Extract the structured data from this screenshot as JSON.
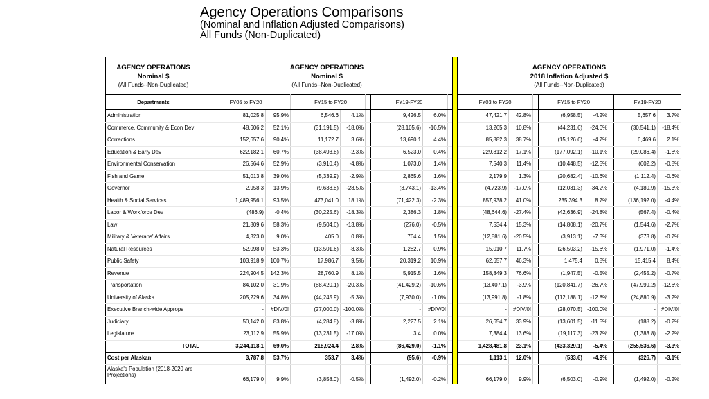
{
  "title": {
    "line1": "Agency Operations Comparisons",
    "line2": "(Nominal  and Inflation Adjusted Comparisons)",
    "line3": "All Funds (Non-Duplicated)"
  },
  "groups": [
    {
      "line1": "AGENCY OPERATIONS",
      "line2": "Nominal $",
      "line3": "(All Funds--Non-Duplicated)"
    },
    {
      "line1": "AGENCY OPERATIONS",
      "line2": "Nominal $",
      "line3": "(All Funds--Non-Duplicated)"
    },
    {
      "line1": "AGENCY OPERATIONS",
      "line2": "2018 Inflation Adjusted $",
      "line3": "(All Funds--Non-Duplicated)"
    }
  ],
  "columns": [
    "Departments",
    "FY05 to FY20",
    "FY15 to FY20",
    "FY19-FY20",
    "FY03 to FY20",
    "FY15 to FY20",
    "FY19-FY20"
  ],
  "rows": [
    {
      "name": "Administration",
      "v": [
        "81,025.8",
        "95.9%",
        "6,546.6",
        "4.1%",
        "9,426.5",
        "6.0%",
        "47,421.7",
        "42.8%",
        "(6,958.5)",
        "-4.2%",
        "5,657.6",
        "3.7%"
      ]
    },
    {
      "name": "Commerce, Community & Econ Dev",
      "v": [
        "48,606.2",
        "52.1%",
        "(31,191.5)",
        "-18.0%",
        "(28,105.6)",
        "-16.5%",
        "13,265.3",
        "10.8%",
        "(44,231.6)",
        "-24.6%",
        "(30,541.1)",
        "-18.4%"
      ]
    },
    {
      "name": "Corrections",
      "v": [
        "152,657.6",
        "90.4%",
        "11,172.7",
        "3.6%",
        "13,690.1",
        "4.4%",
        "85,882.3",
        "38.7%",
        "(15,126.6)",
        "-4.7%",
        "6,469.6",
        "2.1%"
      ]
    },
    {
      "name": "Education & Early Dev",
      "v": [
        "622,182.1",
        "60.7%",
        "(38,493.8)",
        "-2.3%",
        "6,523.0",
        "0.4%",
        "229,812.2",
        "17.1%",
        "(177,092.1)",
        "-10.1%",
        "(29,086.4)",
        "-1.8%"
      ]
    },
    {
      "name": "Environmental Conservation",
      "v": [
        "26,564.6",
        "52.9%",
        "(3,910.4)",
        "-4.8%",
        "1,073.0",
        "1.4%",
        "7,540.3",
        "11.4%",
        "(10,448.5)",
        "-12.5%",
        "(602.2)",
        "-0.8%"
      ]
    },
    {
      "name": "Fish and Game",
      "v": [
        "51,013.8",
        "39.0%",
        "(5,339.9)",
        "-2.9%",
        "2,865.6",
        "1.6%",
        "2,179.9",
        "1.3%",
        "(20,682.4)",
        "-10.6%",
        "(1,112.4)",
        "-0.6%"
      ]
    },
    {
      "name": "Governor",
      "v": [
        "2,958.3",
        "13.9%",
        "(9,638.8)",
        "-28.5%",
        "(3,743.1)",
        "-13.4%",
        "(4,723.9)",
        "-17.0%",
        "(12,031.3)",
        "-34.2%",
        "(4,180.9)",
        "-15.3%"
      ]
    },
    {
      "name": "Health & Social Services",
      "v": [
        "1,489,956.1",
        "93.5%",
        "473,041.0",
        "18.1%",
        "(71,422.3)",
        "-2.3%",
        "857,938.2",
        "41.0%",
        "235,394.3",
        "8.7%",
        "(136,192.0)",
        "-4.4%"
      ]
    },
    {
      "name": "Labor & Workforce Dev",
      "v": [
        "(486.9)",
        "-0.4%",
        "(30,225.6)",
        "-18.3%",
        "2,386.3",
        "1.8%",
        "(48,644.6)",
        "-27.4%",
        "(42,636.9)",
        "-24.8%",
        "(567.4)",
        "-0.4%"
      ]
    },
    {
      "name": "Law",
      "v": [
        "21,809.6",
        "58.3%",
        "(9,504.6)",
        "-13.8%",
        "(276.0)",
        "-0.5%",
        "7,534.4",
        "15.3%",
        "(14,808.1)",
        "-20.7%",
        "(1,544.6)",
        "-2.7%"
      ]
    },
    {
      "name": "Military & Veterans' Affairs",
      "v": [
        "4,323.0",
        "9.0%",
        "405.0",
        "0.8%",
        "764.4",
        "1.5%",
        "(12,881.6)",
        "-20.5%",
        "(3,913.1)",
        "-7.3%",
        "(373.8)",
        "-0.7%"
      ]
    },
    {
      "name": "Natural Resources",
      "v": [
        "52,098.0",
        "53.3%",
        "(13,501.6)",
        "-8.3%",
        "1,282.7",
        "0.9%",
        "15,010.7",
        "11.7%",
        "(26,503.2)",
        "-15.6%",
        "(1,971.0)",
        "-1.4%"
      ]
    },
    {
      "name": "Public Safety",
      "v": [
        "103,918.9",
        "100.7%",
        "17,986.7",
        "9.5%",
        "20,319.2",
        "10.9%",
        "62,657.7",
        "46.3%",
        "1,475.4",
        "0.8%",
        "15,415.4",
        "8.4%"
      ]
    },
    {
      "name": "Revenue",
      "v": [
        "224,904.5",
        "142.3%",
        "28,760.9",
        "8.1%",
        "5,915.5",
        "1.6%",
        "158,849.3",
        "76.6%",
        "(1,947.5)",
        "-0.5%",
        "(2,455.2)",
        "-0.7%"
      ]
    },
    {
      "name": "Transportation",
      "v": [
        "84,102.0",
        "31.9%",
        "(88,420.1)",
        "-20.3%",
        "(41,429.2)",
        "-10.6%",
        "(13,407.1)",
        "-3.9%",
        "(120,841.7)",
        "-26.7%",
        "(47,999.2)",
        "-12.6%"
      ]
    },
    {
      "name": "University of Alaska",
      "v": [
        "205,229.6",
        "34.8%",
        "(44,245.9)",
        "-5.3%",
        "(7,930.0)",
        "-1.0%",
        "(13,991.8)",
        "-1.8%",
        "(112,188.1)",
        "-12.8%",
        "(24,880.9)",
        "-3.2%"
      ]
    },
    {
      "name": "Executive Branch-wide Approps",
      "v": [
        "-",
        "#DIV/0!",
        "(27,000.0)",
        "-100.0%",
        "-",
        "#DIV/0!",
        "-",
        "#DIV/0!",
        "(28,070.5)",
        "-100.0%",
        "-",
        "#DIV/0!"
      ]
    },
    {
      "name": "Judiciary",
      "v": [
        "50,142.0",
        "83.8%",
        "(4,284.8)",
        "-3.8%",
        "2,227.5",
        "2.1%",
        "26,654.7",
        "33.9%",
        "(13,601.5)",
        "-11.5%",
        "(188.2)",
        "-0.2%"
      ]
    },
    {
      "name": "Legislature",
      "v": [
        "23,112.9",
        "55.9%",
        "(13,231.5)",
        "-17.0%",
        "3.4",
        "0.0%",
        "7,384.4",
        "13.6%",
        "(19,117.3)",
        "-23.7%",
        "(1,383.8)",
        "-2.2%"
      ]
    }
  ],
  "total": {
    "name": "TOTAL",
    "v": [
      "3,244,118.1",
      "69.0%",
      "218,924.4",
      "2.8%",
      "(86,429.0)",
      "-1.1%",
      "1,428,481.8",
      "23.1%",
      "(433,329.1)",
      "-5.4%",
      "(255,536.6)",
      "-3.3%"
    ]
  },
  "cost": {
    "name": "Cost per Alaskan",
    "v": [
      "3,787.8",
      "53.7%",
      "353.7",
      "3.4%",
      "(95.6)",
      "-0.9%",
      "1,113.1",
      "12.0%",
      "(533.6)",
      "-4.9%",
      "(326.7)",
      "-3.1%"
    ]
  },
  "population": {
    "name": "Alaska's Population (2018-2020 are Projections)",
    "v": [
      "66,179.0",
      "9.9%",
      "(3,858.0)",
      "-0.5%",
      "(1,492.0)",
      "-0.2%",
      "66,179.0",
      "9.9%",
      "(6,503.0)",
      "-0.9%",
      "(1,492.0)",
      "-0.2%"
    ]
  },
  "colors": {
    "separator": "#ffff00",
    "border": "#000000"
  }
}
